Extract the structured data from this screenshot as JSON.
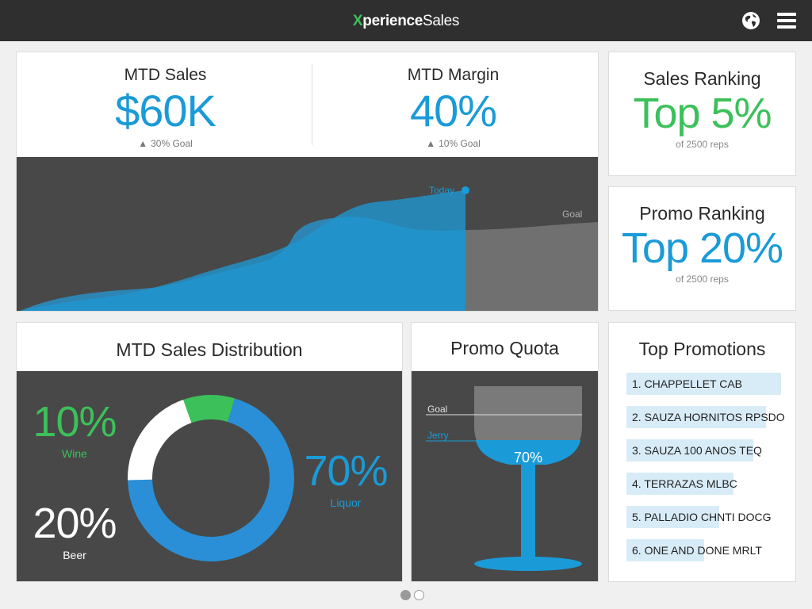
{
  "app": {
    "brand_x": "X",
    "brand_mid": "perience",
    "brand_end": "Sales",
    "icons": [
      "globe-icon",
      "menu-icon"
    ]
  },
  "mtd": {
    "sales_title": "MTD Sales",
    "sales_value": "$60K",
    "sales_goal": "30% Goal",
    "margin_title": "MTD Margin",
    "margin_value": "40%",
    "margin_goal": "10% Goal",
    "today_label": "Today",
    "goal_label": "Goal"
  },
  "sales_ranking": {
    "title": "Sales Ranking",
    "value": "Top 5%",
    "sub": "of 2500 reps",
    "color": "#3cc05a"
  },
  "promo_ranking": {
    "title": "Promo Ranking",
    "value": "Top 20%",
    "sub": "of 2500 reps",
    "color": "#1a9bd7"
  },
  "distribution": {
    "title": "MTD Sales Distribution",
    "items": [
      {
        "label": "Wine",
        "value": "10%",
        "color": "#3cc05a"
      },
      {
        "label": "Beer",
        "value": "20%",
        "color": "#ffffff"
      },
      {
        "label": "Liquor",
        "value": "70%",
        "color": "#2a8fd6"
      }
    ]
  },
  "quota": {
    "title": "Promo Quota",
    "goal_label": "Goal",
    "jerry_label": "Jerry",
    "fill_value": "70%",
    "fill_fraction": 0.7
  },
  "promotions": {
    "title": "Top Promotions",
    "items": [
      {
        "label": "1. CHAPPELLET CAB",
        "share": 1.0
      },
      {
        "label": "2. SAUZA HORNITOS RPSDO",
        "share": 0.9
      },
      {
        "label": "3. SAUZA 100 ANOS TEQ",
        "share": 0.82
      },
      {
        "label": "4. TERRAZAS MLBC",
        "share": 0.69
      },
      {
        "label": "5. PALLADIO CHNTI DOCG",
        "share": 0.6
      },
      {
        "label": "6. ONE AND DONE MRLT",
        "share": 0.5
      }
    ]
  },
  "pager": {
    "pages": 2,
    "active": 0
  }
}
